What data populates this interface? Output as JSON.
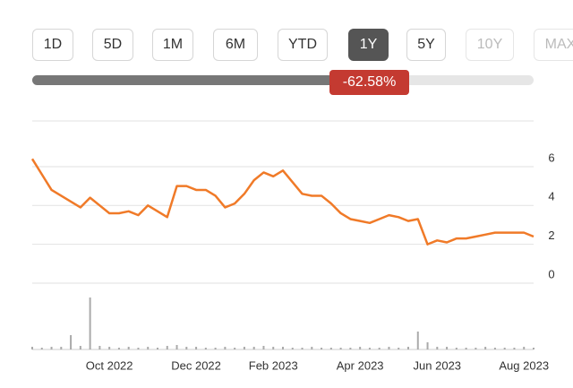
{
  "range_buttons": [
    "1D",
    "5D",
    "1M",
    "6M",
    "YTD",
    "1Y",
    "5Y",
    "10Y",
    "MAX"
  ],
  "selected_index": 5,
  "change_label": "-62.58%",
  "chart_data": {
    "type": "line",
    "categories": [
      null,
      null,
      null,
      null,
      null,
      null,
      null,
      null,
      "Oct 2022",
      null,
      null,
      null,
      null,
      null,
      null,
      null,
      null,
      "Dec 2022",
      null,
      null,
      null,
      null,
      null,
      null,
      null,
      "Feb 2023",
      null,
      null,
      null,
      null,
      null,
      null,
      null,
      null,
      "Apr 2023",
      null,
      null,
      null,
      null,
      null,
      null,
      null,
      "Jun 2023",
      null,
      null,
      null,
      null,
      null,
      null,
      null,
      null,
      "Aug 2023",
      null
    ],
    "series": [
      {
        "color": "#f07a28",
        "values": [
          6.4,
          5.6,
          4.8,
          4.5,
          4.2,
          3.9,
          4.4,
          4.0,
          3.6,
          3.6,
          3.7,
          3.5,
          4.0,
          3.7,
          3.4,
          5.0,
          5.0,
          4.8,
          4.8,
          4.5,
          3.9,
          4.1,
          4.6,
          5.3,
          5.7,
          5.5,
          5.8,
          5.2,
          4.6,
          4.5,
          4.5,
          4.1,
          3.6,
          3.3,
          3.2,
          3.1,
          3.3,
          3.5,
          3.4,
          3.2,
          3.3,
          2.0,
          2.2,
          2.1,
          2.3,
          2.3,
          2.4,
          2.5,
          2.6,
          2.6,
          2.6,
          2.6,
          2.4
        ]
      }
    ],
    "volume": [
      3,
      2,
      3,
      3,
      16,
      4,
      58,
      4,
      3,
      2,
      3,
      2,
      3,
      2,
      4,
      5,
      3,
      3,
      2,
      2,
      3,
      2,
      3,
      3,
      4,
      3,
      3,
      2,
      2,
      3,
      2,
      2,
      2,
      2,
      3,
      2,
      2,
      3,
      2,
      3,
      20,
      8,
      3,
      3,
      2,
      2,
      2,
      3,
      2,
      2,
      2,
      3,
      2
    ],
    "ylim": [
      0,
      8
    ],
    "yticks": [
      0,
      2,
      4,
      6
    ],
    "grid": true
  }
}
